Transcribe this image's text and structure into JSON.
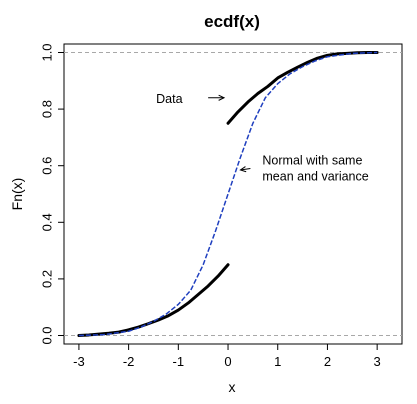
{
  "chart_data": {
    "type": "line",
    "title": "ecdf(x)",
    "xlabel": "x",
    "ylabel": "Fn(x)",
    "xlim": [
      -3.3,
      3.5
    ],
    "ylim": [
      -0.03,
      1.03
    ],
    "xticks": [
      -3,
      -2,
      -1,
      0,
      1,
      2,
      3
    ],
    "yticks": [
      0.0,
      0.2,
      0.4,
      0.6,
      0.8,
      1.0
    ],
    "xtick_labels": [
      "-3",
      "-2",
      "-1",
      "0",
      "1",
      "2",
      "3"
    ],
    "ytick_labels": [
      "0.0",
      "0.2",
      "0.4",
      "0.6",
      "0.8",
      "1.0"
    ],
    "reference_lines": [
      0,
      1
    ],
    "grid": false,
    "series": [
      {
        "style": "thick-solid",
        "color": "#000000",
        "x": [
          -3.0,
          -2.8,
          -2.6,
          -2.4,
          -2.2,
          -2.0,
          -1.8,
          -1.6,
          -1.4,
          -1.2,
          -1.0,
          -0.8,
          -0.6,
          -0.4,
          -0.2,
          0.0
        ],
        "y": [
          0.0,
          0.002,
          0.005,
          0.008,
          0.012,
          0.02,
          0.03,
          0.042,
          0.055,
          0.07,
          0.09,
          0.115,
          0.145,
          0.175,
          0.21,
          0.25
        ]
      },
      {
        "style": "thick-solid",
        "color": "#000000",
        "x": [
          0.0,
          0.2,
          0.4,
          0.6,
          0.8,
          1.0,
          1.2,
          1.4,
          1.6,
          1.8,
          2.0,
          2.2,
          2.4,
          2.6,
          2.8,
          3.0
        ],
        "y": [
          0.75,
          0.79,
          0.825,
          0.855,
          0.88,
          0.91,
          0.93,
          0.948,
          0.965,
          0.98,
          0.99,
          0.995,
          0.997,
          0.999,
          1.0,
          1.0
        ]
      },
      {
        "style": "dashed",
        "color": "#1f3fbf",
        "x": [
          -3.0,
          -2.5,
          -2.0,
          -1.75,
          -1.5,
          -1.25,
          -1.0,
          -0.75,
          -0.5,
          -0.25,
          0.0,
          0.25,
          0.5,
          0.75,
          1.0,
          1.25,
          1.5,
          1.75,
          2.0,
          2.5,
          3.0
        ],
        "y": [
          0.0,
          0.003,
          0.015,
          0.03,
          0.05,
          0.075,
          0.11,
          0.16,
          0.25,
          0.37,
          0.5,
          0.63,
          0.75,
          0.84,
          0.89,
          0.925,
          0.95,
          0.97,
          0.985,
          0.997,
          1.0
        ]
      }
    ],
    "annotations": [
      {
        "lines": [
          "Data"
        ],
        "arrow_from": [
          -0.4,
          0.84
        ],
        "arrow_to": [
          -0.08,
          0.84
        ]
      },
      {
        "lines": [
          "Normal with same",
          "mean and variance"
        ],
        "arrow_from": [
          0.45,
          0.59
        ],
        "arrow_to": [
          0.25,
          0.585
        ]
      }
    ]
  }
}
